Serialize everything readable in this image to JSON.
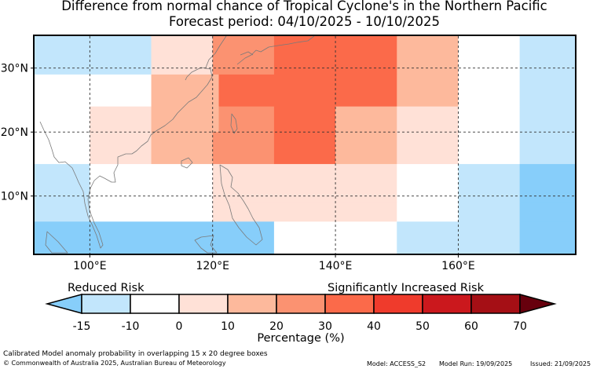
{
  "title": {
    "line1": "Difference from normal chance of Tropical Cyclone's in the Northern Pacific",
    "line2": "Forecast period: 04/10/2025 - 10/10/2025"
  },
  "map": {
    "lon_range": [
      91,
      179
    ],
    "lat_range": [
      1,
      35
    ],
    "x_ticks": [
      {
        "value": 100,
        "label": "100°E"
      },
      {
        "value": 120,
        "label": "120°E"
      },
      {
        "value": 140,
        "label": "140°E"
      },
      {
        "value": 160,
        "label": "160°E"
      }
    ],
    "y_ticks": [
      {
        "value": 30,
        "label": "30°N"
      },
      {
        "value": 20,
        "label": "20°N"
      },
      {
        "value": 10,
        "label": "10°N"
      }
    ],
    "cells": [
      {
        "lon": [
          91,
          110
        ],
        "lat": [
          29,
          35
        ],
        "bin": "-15 to -10"
      },
      {
        "lon": [
          110,
          120
        ],
        "lat": [
          29,
          35
        ],
        "bin": "0 to 10"
      },
      {
        "lon": [
          120,
          130
        ],
        "lat": [
          29,
          35
        ],
        "bin": "20 to 30"
      },
      {
        "lon": [
          130,
          150
        ],
        "lat": [
          29,
          35
        ],
        "bin": "30 to 40"
      },
      {
        "lon": [
          150,
          160
        ],
        "lat": [
          29,
          35
        ],
        "bin": "10 to 20"
      },
      {
        "lon": [
          160,
          170
        ],
        "lat": [
          29,
          35
        ],
        "bin": "-10 to 0"
      },
      {
        "lon": [
          170,
          179
        ],
        "lat": [
          29,
          35
        ],
        "bin": "-15 to -10"
      },
      {
        "lon": [
          91,
          110
        ],
        "lat": [
          24,
          29
        ],
        "bin": "-10 to 0"
      },
      {
        "lon": [
          110,
          121
        ],
        "lat": [
          24,
          29
        ],
        "bin": "10 to 20"
      },
      {
        "lon": [
          121,
          150
        ],
        "lat": [
          24,
          29
        ],
        "bin": "30 to 40"
      },
      {
        "lon": [
          150,
          160
        ],
        "lat": [
          24,
          29
        ],
        "bin": "10 to 20"
      },
      {
        "lon": [
          160,
          170
        ],
        "lat": [
          24,
          29
        ],
        "bin": "-10 to 0"
      },
      {
        "lon": [
          170,
          179
        ],
        "lat": [
          24,
          29
        ],
        "bin": "-15 to -10"
      },
      {
        "lon": [
          91,
          100
        ],
        "lat": [
          20,
          24
        ],
        "bin": "-10 to 0"
      },
      {
        "lon": [
          100,
          110
        ],
        "lat": [
          20,
          24
        ],
        "bin": "0 to 10"
      },
      {
        "lon": [
          110,
          121
        ],
        "lat": [
          20,
          24
        ],
        "bin": "10 to 20"
      },
      {
        "lon": [
          121,
          130
        ],
        "lat": [
          20,
          24
        ],
        "bin": "20 to 30"
      },
      {
        "lon": [
          130,
          140
        ],
        "lat": [
          20,
          24
        ],
        "bin": "30 to 40"
      },
      {
        "lon": [
          140,
          150
        ],
        "lat": [
          20,
          24
        ],
        "bin": "10 to 20"
      },
      {
        "lon": [
          150,
          160
        ],
        "lat": [
          20,
          24
        ],
        "bin": "0 to 10"
      },
      {
        "lon": [
          160,
          170
        ],
        "lat": [
          20,
          24
        ],
        "bin": "-10 to 0"
      },
      {
        "lon": [
          170,
          179
        ],
        "lat": [
          20,
          24
        ],
        "bin": "-15 to -10"
      },
      {
        "lon": [
          91,
          100
        ],
        "lat": [
          15,
          20
        ],
        "bin": "-10 to 0"
      },
      {
        "lon": [
          100,
          110
        ],
        "lat": [
          15,
          20
        ],
        "bin": "0 to 10"
      },
      {
        "lon": [
          110,
          120
        ],
        "lat": [
          15,
          20
        ],
        "bin": "10 to 20"
      },
      {
        "lon": [
          120,
          130
        ],
        "lat": [
          15,
          20
        ],
        "bin": "20 to 30"
      },
      {
        "lon": [
          130,
          140
        ],
        "lat": [
          15,
          20
        ],
        "bin": "30 to 40"
      },
      {
        "lon": [
          140,
          150
        ],
        "lat": [
          15,
          20
        ],
        "bin": "10 to 20"
      },
      {
        "lon": [
          150,
          160
        ],
        "lat": [
          15,
          20
        ],
        "bin": "0 to 10"
      },
      {
        "lon": [
          160,
          170
        ],
        "lat": [
          15,
          20
        ],
        "bin": "-10 to 0"
      },
      {
        "lon": [
          170,
          179
        ],
        "lat": [
          15,
          20
        ],
        "bin": "-15 to -10"
      },
      {
        "lon": [
          91,
          100
        ],
        "lat": [
          9,
          15
        ],
        "bin": "-15 to -10"
      },
      {
        "lon": [
          100,
          120
        ],
        "lat": [
          9,
          15
        ],
        "bin": "-10 to 0"
      },
      {
        "lon": [
          120,
          150
        ],
        "lat": [
          9,
          15
        ],
        "bin": "0 to 10"
      },
      {
        "lon": [
          150,
          160
        ],
        "lat": [
          9,
          15
        ],
        "bin": "-10 to 0"
      },
      {
        "lon": [
          160,
          170
        ],
        "lat": [
          9,
          15
        ],
        "bin": "-15 to -10"
      },
      {
        "lon": [
          170,
          179
        ],
        "lat": [
          9,
          15
        ],
        "bin": "below -15"
      },
      {
        "lon": [
          91,
          100
        ],
        "lat": [
          6,
          9
        ],
        "bin": "-15 to -10"
      },
      {
        "lon": [
          100,
          120
        ],
        "lat": [
          6,
          9
        ],
        "bin": "-10 to 0"
      },
      {
        "lon": [
          120,
          150
        ],
        "lat": [
          6,
          9
        ],
        "bin": "0 to 10"
      },
      {
        "lon": [
          150,
          160
        ],
        "lat": [
          6,
          9
        ],
        "bin": "-10 to 0"
      },
      {
        "lon": [
          160,
          170
        ],
        "lat": [
          6,
          9
        ],
        "bin": "-15 to -10"
      },
      {
        "lon": [
          170,
          179
        ],
        "lat": [
          6,
          9
        ],
        "bin": "below -15"
      },
      {
        "lon": [
          91,
          130
        ],
        "lat": [
          1,
          6
        ],
        "bin": "below -15"
      },
      {
        "lon": [
          130,
          150
        ],
        "lat": [
          1,
          6
        ],
        "bin": "-10 to 0"
      },
      {
        "lon": [
          150,
          170
        ],
        "lat": [
          1,
          6
        ],
        "bin": "-15 to -10"
      },
      {
        "lon": [
          170,
          179
        ],
        "lat": [
          1,
          6
        ],
        "bin": "below -15"
      }
    ]
  },
  "legend": {
    "reduced_label": "Reduced Risk",
    "increased_label": "Significantly Increased Risk",
    "xlabel": "Percentage (%)",
    "ticks": [
      "-15",
      "-10",
      "0",
      "10",
      "20",
      "30",
      "40",
      "50",
      "60",
      "70"
    ],
    "bins": [
      {
        "name": "below -15",
        "color": "#87cefa"
      },
      {
        "name": "-15 to -10",
        "color": "#c2e6fc"
      },
      {
        "name": "-10 to 0",
        "color": "#ffffff"
      },
      {
        "name": "0 to 10",
        "color": "#ffe1d7"
      },
      {
        "name": "10 to 20",
        "color": "#fdb99c"
      },
      {
        "name": "20 to 30",
        "color": "#fb9271"
      },
      {
        "name": "30 to 40",
        "color": "#fb6a4a"
      },
      {
        "name": "40 to 50",
        "color": "#ef3b2c"
      },
      {
        "name": "50 to 60",
        "color": "#cb181d"
      },
      {
        "name": "60 to 70",
        "color": "#a50f15"
      },
      {
        "name": "above 70",
        "color": "#67000d"
      }
    ]
  },
  "footer": {
    "method": "Calibrated Model anomaly probability in overlapping 15 x 20 degree boxes",
    "copyright": "© Commonwealth of Australia 2025, Australian Bureau of Meteorology",
    "model": "Model: ACCESS_S2",
    "run": "Model Run: 19/09/2025",
    "issued": "Issued: 21/09/2025"
  }
}
